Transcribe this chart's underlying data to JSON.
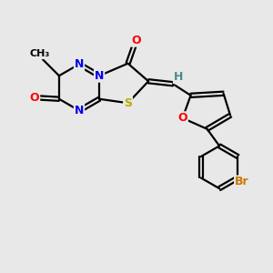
{
  "background_color": "#e8e8e8",
  "bond_color": "#000000",
  "bond_width": 1.6,
  "atom_colors": {
    "N": "#0000ee",
    "O": "#ff0000",
    "S": "#bbaa00",
    "Br": "#cc7700",
    "H": "#4a8a8a",
    "C": "#000000"
  },
  "fig_width": 3.0,
  "fig_height": 3.0,
  "dpi": 100
}
